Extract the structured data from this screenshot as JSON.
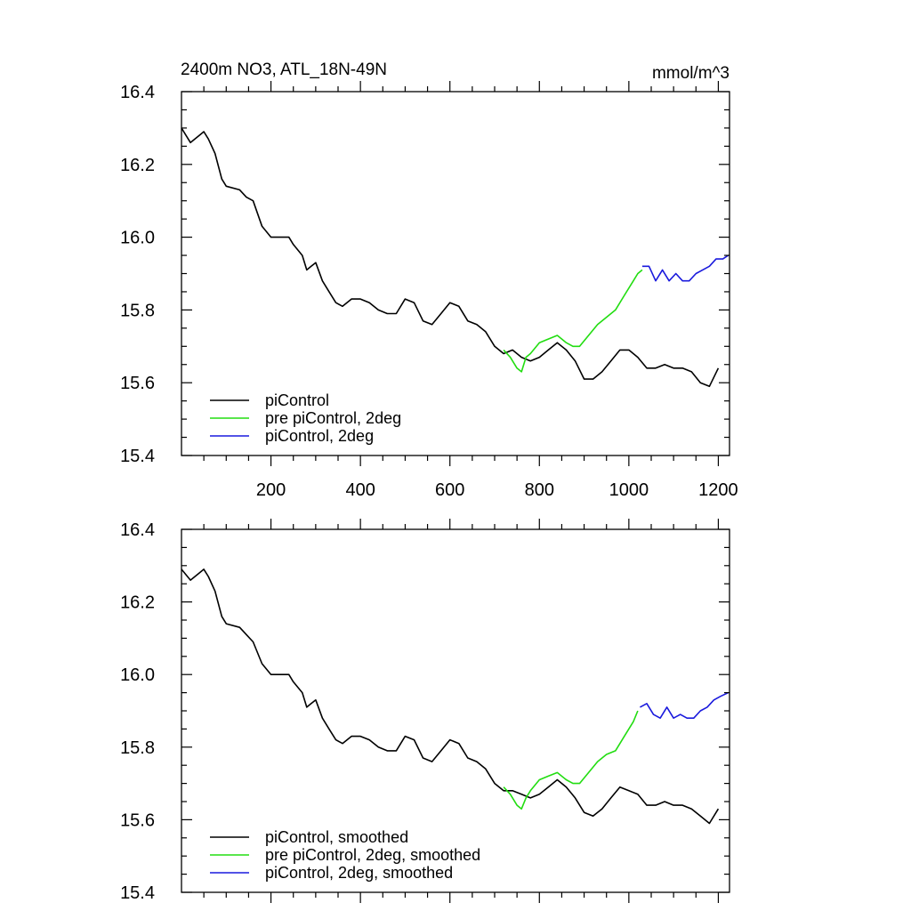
{
  "chart_data": [
    {
      "type": "line",
      "title": "2400m NO3, ATL_18N-49N",
      "units": "mmol/m^3",
      "xlim": [
        0,
        1225
      ],
      "ylim": [
        15.4,
        16.4
      ],
      "x_ticks": [
        "200",
        "400",
        "600",
        "800",
        "1000",
        "1200"
      ],
      "y_ticks": [
        "15.4",
        "15.6",
        "15.8",
        "16.0",
        "16.2",
        "16.4"
      ],
      "x_ticks_labeled": true,
      "legend_position": "bottom-left",
      "series": [
        {
          "name": "piControl",
          "color": "#000000",
          "x": [
            0,
            20,
            40,
            50,
            60,
            75,
            90,
            100,
            130,
            145,
            160,
            180,
            200,
            220,
            240,
            250,
            270,
            280,
            290,
            300,
            315,
            330,
            345,
            360,
            380,
            400,
            420,
            440,
            460,
            480,
            500,
            520,
            540,
            560,
            580,
            600,
            620,
            640,
            660,
            680,
            700,
            720,
            740,
            760,
            780,
            800,
            820,
            840,
            860,
            880,
            900,
            920,
            940,
            960,
            980,
            1000,
            1020,
            1040,
            1060,
            1080,
            1100,
            1120,
            1140,
            1160,
            1180,
            1200
          ],
          "values": [
            16.3,
            16.26,
            16.28,
            16.29,
            16.27,
            16.23,
            16.16,
            16.14,
            16.13,
            16.11,
            16.1,
            16.03,
            16.0,
            16.0,
            16.0,
            15.98,
            15.95,
            15.91,
            15.92,
            15.93,
            15.88,
            15.85,
            15.82,
            15.81,
            15.83,
            15.83,
            15.82,
            15.8,
            15.79,
            15.79,
            15.83,
            15.82,
            15.77,
            15.76,
            15.79,
            15.82,
            15.81,
            15.77,
            15.76,
            15.74,
            15.7,
            15.68,
            15.69,
            15.67,
            15.66,
            15.67,
            15.69,
            15.71,
            15.69,
            15.66,
            15.61,
            15.61,
            15.63,
            15.66,
            15.69,
            15.69,
            15.67,
            15.64,
            15.64,
            15.65,
            15.64,
            15.64,
            15.63,
            15.6,
            15.59,
            15.64
          ]
        },
        {
          "name": "pre piControl, 2deg",
          "color": "#22dd11",
          "x": [
            720,
            735,
            750,
            760,
            770,
            780,
            800,
            820,
            840,
            860,
            875,
            890,
            910,
            930,
            950,
            970,
            990,
            1010,
            1020,
            1030
          ],
          "values": [
            15.69,
            15.67,
            15.64,
            15.63,
            15.67,
            15.68,
            15.71,
            15.72,
            15.73,
            15.71,
            15.7,
            15.7,
            15.73,
            15.76,
            15.78,
            15.8,
            15.84,
            15.88,
            15.9,
            15.91
          ]
        },
        {
          "name": "piControl, 2deg",
          "color": "#1a1add",
          "x": [
            1030,
            1045,
            1060,
            1075,
            1090,
            1105,
            1120,
            1135,
            1150,
            1165,
            1180,
            1195,
            1210,
            1222
          ],
          "values": [
            15.92,
            15.92,
            15.88,
            15.91,
            15.88,
            15.9,
            15.88,
            15.88,
            15.9,
            15.91,
            15.92,
            15.94,
            15.94,
            15.95
          ]
        }
      ]
    },
    {
      "type": "line",
      "xlim": [
        0,
        1225
      ],
      "ylim": [
        15.4,
        16.4
      ],
      "y_ticks": [
        "15.4",
        "15.6",
        "15.8",
        "16.0",
        "16.2",
        "16.4"
      ],
      "x_ticks_labeled": false,
      "legend_position": "bottom-left",
      "series": [
        {
          "name": "piControl, smoothed",
          "color": "#000000",
          "x": [
            0,
            20,
            40,
            50,
            60,
            75,
            90,
            100,
            130,
            145,
            160,
            180,
            200,
            220,
            240,
            250,
            270,
            280,
            290,
            300,
            315,
            330,
            345,
            360,
            380,
            400,
            420,
            440,
            460,
            480,
            500,
            520,
            540,
            560,
            580,
            600,
            620,
            640,
            660,
            680,
            700,
            720,
            740,
            760,
            780,
            800,
            820,
            840,
            860,
            880,
            900,
            920,
            940,
            960,
            980,
            1000,
            1020,
            1040,
            1060,
            1080,
            1100,
            1120,
            1140,
            1160,
            1180,
            1200
          ],
          "values": [
            16.29,
            16.26,
            16.28,
            16.29,
            16.27,
            16.23,
            16.16,
            16.14,
            16.13,
            16.11,
            16.09,
            16.03,
            16.0,
            16.0,
            16.0,
            15.98,
            15.95,
            15.91,
            15.92,
            15.93,
            15.88,
            15.85,
            15.82,
            15.81,
            15.83,
            15.83,
            15.82,
            15.8,
            15.79,
            15.79,
            15.83,
            15.82,
            15.77,
            15.76,
            15.79,
            15.82,
            15.81,
            15.77,
            15.76,
            15.74,
            15.7,
            15.68,
            15.68,
            15.67,
            15.66,
            15.67,
            15.69,
            15.71,
            15.69,
            15.66,
            15.62,
            15.61,
            15.63,
            15.66,
            15.69,
            15.68,
            15.67,
            15.64,
            15.64,
            15.65,
            15.64,
            15.64,
            15.63,
            15.61,
            15.59,
            15.63
          ]
        },
        {
          "name": "pre piControl, 2deg, smoothed",
          "color": "#22dd11",
          "x": [
            720,
            735,
            750,
            760,
            770,
            780,
            800,
            820,
            840,
            860,
            875,
            890,
            910,
            930,
            950,
            970,
            990,
            1010,
            1020
          ],
          "values": [
            15.69,
            15.67,
            15.64,
            15.63,
            15.66,
            15.68,
            15.71,
            15.72,
            15.73,
            15.71,
            15.7,
            15.7,
            15.73,
            15.76,
            15.78,
            15.79,
            15.83,
            15.87,
            15.9
          ]
        },
        {
          "name": "piControl, 2deg, smoothed",
          "color": "#1a1add",
          "x": [
            1025,
            1040,
            1055,
            1070,
            1085,
            1100,
            1115,
            1130,
            1145,
            1160,
            1175,
            1190,
            1205,
            1222
          ],
          "values": [
            15.91,
            15.92,
            15.89,
            15.88,
            15.91,
            15.88,
            15.89,
            15.88,
            15.88,
            15.9,
            15.91,
            15.93,
            15.94,
            15.95
          ]
        }
      ]
    }
  ]
}
